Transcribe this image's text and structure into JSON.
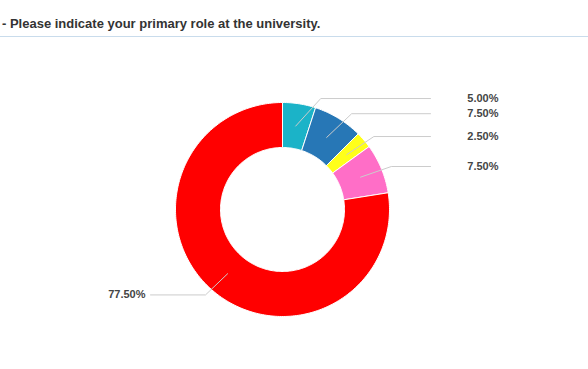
{
  "chart_data": {
    "type": "donut",
    "title": "- Please indicate your primary role at the university.",
    "values": [
      5,
      7.5,
      2.5,
      7.5,
      77.5
    ],
    "value_labels": [
      "5.00%",
      "7.50%",
      "2.50%",
      "7.50%",
      "77.50%"
    ],
    "colors": [
      "#1bb3c8",
      "#2777b6",
      "#ffff1a",
      "#ff6ec7",
      "#ff0000"
    ],
    "data_labels": true
  }
}
